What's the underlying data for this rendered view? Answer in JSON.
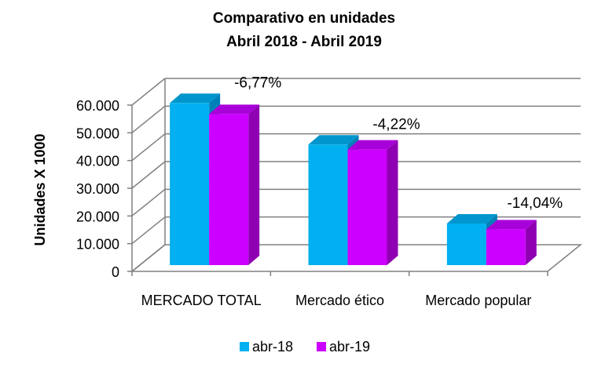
{
  "chart_data": {
    "type": "bar",
    "title_lines": [
      "Comparativo en unidades",
      "Abril 2018 - Abril 2019"
    ],
    "ylabel": "Unidades X 1000",
    "xlabel": "",
    "categories": [
      "MERCADO TOTAL",
      "Mercado ético",
      "Mercado popular"
    ],
    "series": [
      {
        "name": "abr-18",
        "values": [
          58500,
          43500,
          15000
        ]
      },
      {
        "name": "abr-19",
        "values": [
          54500,
          41700,
          12900
        ]
      }
    ],
    "data_labels": [
      "-6,77%",
      "-4,22%",
      "-14,04%"
    ],
    "ylim": [
      0,
      60000
    ],
    "yticks": [
      0,
      10000,
      20000,
      30000,
      40000,
      50000,
      60000
    ],
    "ytick_labels": [
      "0",
      "10.000",
      "20.000",
      "30.000",
      "40.000",
      "50.000",
      "60.000"
    ],
    "grid": true,
    "legend_position": "bottom",
    "style": "3d-clustered-column",
    "colors": {
      "series_front": [
        "#00B0F0",
        "#CC00FF"
      ],
      "series_side": [
        "#0080B8",
        "#8F00B3"
      ],
      "series_top": [
        "#0095CC",
        "#A800D9"
      ],
      "grid": "#808080",
      "axis": "#808080"
    }
  }
}
